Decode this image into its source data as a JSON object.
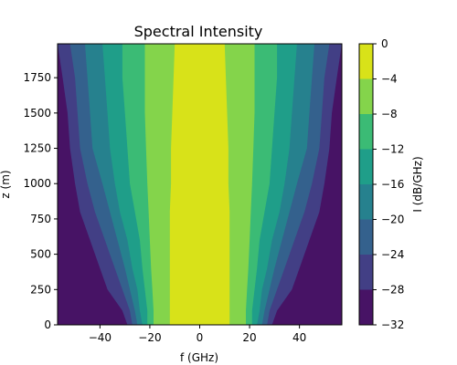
{
  "chart_data": {
    "type": "heatmap",
    "subtype": "filled-contour",
    "title": "Spectral Intensity",
    "xlabel": "f (GHz)",
    "ylabel": "z (m)",
    "xlim": [
      -57,
      57
    ],
    "ylim": [
      0,
      1990
    ],
    "xticks": [
      -40,
      -20,
      0,
      20,
      40
    ],
    "yticks": [
      0,
      250,
      500,
      750,
      1000,
      1250,
      1500,
      1750
    ],
    "grid": false,
    "colormap": "viridis",
    "colorbar": {
      "label": "I (dB/GHz)",
      "levels": [
        -32,
        -28,
        -24,
        -20,
        -16,
        -12,
        -8,
        -4,
        0
      ],
      "ticks": [
        -32,
        -28,
        -24,
        -20,
        -16,
        -12,
        -8,
        -4,
        0
      ],
      "tick_labels": [
        "−32",
        "−28",
        "−24",
        "−20",
        "−16",
        "−12",
        "−8",
        "−4",
        "0"
      ],
      "colors": [
        "#471365",
        "#423f85",
        "#34618d",
        "#26818e",
        "#1f9e89",
        "#3bbb75",
        "#84d44b",
        "#d8e219"
      ]
    },
    "contour_boundaries": {
      "z": [
        0,
        100,
        250,
        400,
        600,
        800,
        1000,
        1250,
        1500,
        1750,
        1990
      ],
      "f_abs": {
        "-28": [
          29,
          31,
          37,
          40,
          44,
          48,
          50,
          52,
          53,
          55,
          57
        ],
        "-24": [
          27,
          28,
          31,
          34,
          38,
          42,
          45,
          48,
          49,
          50,
          52
        ],
        "-20": [
          25,
          26,
          28,
          30,
          33,
          36,
          39,
          43,
          44,
          45,
          46
        ],
        "-16": [
          23,
          24,
          25,
          27,
          29,
          32,
          34,
          36,
          37,
          38,
          39
        ],
        "-12": [
          21,
          21,
          22,
          23,
          24,
          26,
          28,
          29,
          30,
          31,
          31
        ],
        "-8": [
          18.5,
          18.5,
          19,
          19.5,
          20,
          20.5,
          21,
          21.5,
          22,
          22,
          22
        ],
        "-4": [
          12,
          12,
          12,
          12,
          12,
          12,
          11.5,
          11.5,
          11,
          10.5,
          10
        ]
      }
    }
  }
}
